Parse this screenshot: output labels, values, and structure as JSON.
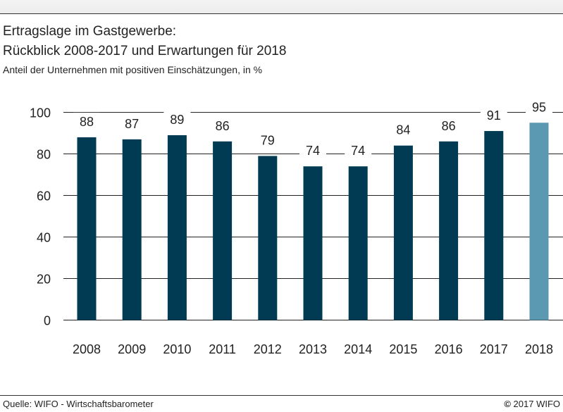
{
  "header": {
    "title_line1": "Ertragslage im Gastgewerbe:",
    "title_line2": "Rückblick 2008-2017 und Erwartungen für 2018",
    "subtitle": "Anteil der Unternehmen mit positiven Einschätzungen, in %"
  },
  "footer": {
    "source": "Quelle: WIFO - Wirtschaftsbarometer",
    "copyright_symbol": "©",
    "copyright_text": "2017 WIFO"
  },
  "chart_data": {
    "type": "bar",
    "categories": [
      "2008",
      "2009",
      "2010",
      "2011",
      "2012",
      "2013",
      "2014",
      "2015",
      "2016",
      "2017",
      "2018"
    ],
    "values": [
      88,
      87,
      89,
      86,
      79,
      74,
      74,
      84,
      86,
      91,
      95
    ],
    "value_labels": [
      "88",
      "87",
      "89",
      "86",
      "79",
      "74",
      "74",
      "84",
      "86",
      "91",
      "95"
    ],
    "yticks": [
      "0",
      "20",
      "40",
      "60",
      "80",
      "100"
    ],
    "ylim": [
      0,
      100
    ],
    "grid": true,
    "colors": {
      "historic": "#003b53",
      "expectation": "#5b98b2",
      "grid": "#222222"
    }
  }
}
